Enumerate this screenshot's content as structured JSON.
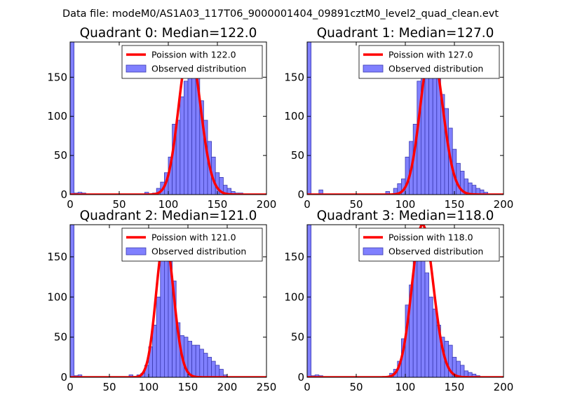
{
  "suptitle": "Data file: modeM0/AS1A03_117T06_9000001404_09891cztM0_level2_quad_clean.evt",
  "colors": {
    "bar_fill": "#8080ff",
    "bar_edge": "#3a3ab0",
    "line": "#ff0000"
  },
  "chart_data": [
    {
      "type": "bar",
      "title": "Quadrant 0: Median=122.0",
      "xlim": [
        0,
        200
      ],
      "ylim": [
        0,
        195
      ],
      "xticks": [
        0,
        50,
        100,
        150,
        200
      ],
      "yticks": [
        0,
        50,
        100,
        150
      ],
      "bin_width": 4,
      "bins": [
        {
          "x": 0,
          "count": 195
        },
        {
          "x": 4,
          "count": 2
        },
        {
          "x": 8,
          "count": 3
        },
        {
          "x": 12,
          "count": 2
        },
        {
          "x": 76,
          "count": 3
        },
        {
          "x": 84,
          "count": 2
        },
        {
          "x": 88,
          "count": 8
        },
        {
          "x": 92,
          "count": 16
        },
        {
          "x": 96,
          "count": 28
        },
        {
          "x": 100,
          "count": 48
        },
        {
          "x": 104,
          "count": 90
        },
        {
          "x": 108,
          "count": 95
        },
        {
          "x": 112,
          "count": 125
        },
        {
          "x": 116,
          "count": 145
        },
        {
          "x": 120,
          "count": 165
        },
        {
          "x": 124,
          "count": 185
        },
        {
          "x": 128,
          "count": 160
        },
        {
          "x": 132,
          "count": 120
        },
        {
          "x": 136,
          "count": 95
        },
        {
          "x": 140,
          "count": 68
        },
        {
          "x": 144,
          "count": 48
        },
        {
          "x": 148,
          "count": 28
        },
        {
          "x": 152,
          "count": 22
        },
        {
          "x": 156,
          "count": 12
        },
        {
          "x": 160,
          "count": 8
        },
        {
          "x": 164,
          "count": 4
        },
        {
          "x": 168,
          "count": 2
        },
        {
          "x": 172,
          "count": 2
        }
      ],
      "poisson": {
        "mean": 122.0,
        "peak": 188,
        "label": "Poission with 122.0"
      },
      "legend": [
        "Poission with 122.0",
        "Observed distribution"
      ]
    },
    {
      "type": "bar",
      "title": "Quadrant 1: Median=127.0",
      "xlim": [
        0,
        200
      ],
      "ylim": [
        0,
        195
      ],
      "xticks": [
        0,
        50,
        100,
        150,
        200
      ],
      "yticks": [
        0,
        50,
        100,
        150
      ],
      "bin_width": 4,
      "bins": [
        {
          "x": 0,
          "count": 195
        },
        {
          "x": 12,
          "count": 6
        },
        {
          "x": 80,
          "count": 4
        },
        {
          "x": 88,
          "count": 8
        },
        {
          "x": 92,
          "count": 14
        },
        {
          "x": 96,
          "count": 20
        },
        {
          "x": 100,
          "count": 48
        },
        {
          "x": 104,
          "count": 68
        },
        {
          "x": 108,
          "count": 90
        },
        {
          "x": 112,
          "count": 145
        },
        {
          "x": 116,
          "count": 170
        },
        {
          "x": 120,
          "count": 168
        },
        {
          "x": 124,
          "count": 185
        },
        {
          "x": 128,
          "count": 180
        },
        {
          "x": 132,
          "count": 155
        },
        {
          "x": 136,
          "count": 128
        },
        {
          "x": 140,
          "count": 110
        },
        {
          "x": 144,
          "count": 85
        },
        {
          "x": 148,
          "count": 58
        },
        {
          "x": 152,
          "count": 40
        },
        {
          "x": 156,
          "count": 30
        },
        {
          "x": 160,
          "count": 20
        },
        {
          "x": 164,
          "count": 15
        },
        {
          "x": 168,
          "count": 12
        },
        {
          "x": 172,
          "count": 8
        },
        {
          "x": 176,
          "count": 6
        },
        {
          "x": 180,
          "count": 3
        }
      ],
      "poisson": {
        "mean": 127.0,
        "peak": 188,
        "label": "Poission with 127.0"
      },
      "legend": [
        "Poission with 127.0",
        "Observed distribution"
      ]
    },
    {
      "type": "bar",
      "title": "Quadrant 2: Median=121.0",
      "xlim": [
        0,
        250
      ],
      "ylim": [
        0,
        190
      ],
      "xticks": [
        0,
        50,
        100,
        150,
        200,
        250
      ],
      "yticks": [
        0,
        50,
        100,
        150
      ],
      "bin_width": 5,
      "bins": [
        {
          "x": 0,
          "count": 190
        },
        {
          "x": 5,
          "count": 2
        },
        {
          "x": 10,
          "count": 3
        },
        {
          "x": 75,
          "count": 3
        },
        {
          "x": 85,
          "count": 3
        },
        {
          "x": 90,
          "count": 5
        },
        {
          "x": 95,
          "count": 15
        },
        {
          "x": 100,
          "count": 38
        },
        {
          "x": 105,
          "count": 65
        },
        {
          "x": 110,
          "count": 100
        },
        {
          "x": 115,
          "count": 155
        },
        {
          "x": 120,
          "count": 175
        },
        {
          "x": 125,
          "count": 160
        },
        {
          "x": 130,
          "count": 120
        },
        {
          "x": 135,
          "count": 68
        },
        {
          "x": 140,
          "count": 52
        },
        {
          "x": 145,
          "count": 50
        },
        {
          "x": 150,
          "count": 45
        },
        {
          "x": 155,
          "count": 40
        },
        {
          "x": 160,
          "count": 40
        },
        {
          "x": 165,
          "count": 35
        },
        {
          "x": 170,
          "count": 30
        },
        {
          "x": 175,
          "count": 25
        },
        {
          "x": 180,
          "count": 20
        },
        {
          "x": 185,
          "count": 15
        },
        {
          "x": 190,
          "count": 10
        },
        {
          "x": 195,
          "count": 3
        }
      ],
      "poisson": {
        "mean": 121.0,
        "peak": 175,
        "label": "Poission with 121.0"
      },
      "legend": [
        "Poission with 121.0",
        "Observed distribution"
      ]
    },
    {
      "type": "bar",
      "title": "Quadrant 3: Median=118.0",
      "xlim": [
        0,
        200
      ],
      "ylim": [
        0,
        190
      ],
      "xticks": [
        0,
        50,
        100,
        150,
        200
      ],
      "yticks": [
        0,
        50,
        100,
        150
      ],
      "bin_width": 4,
      "bins": [
        {
          "x": 0,
          "count": 190
        },
        {
          "x": 4,
          "count": 2
        },
        {
          "x": 8,
          "count": 3
        },
        {
          "x": 12,
          "count": 2
        },
        {
          "x": 84,
          "count": 5
        },
        {
          "x": 88,
          "count": 10
        },
        {
          "x": 92,
          "count": 20
        },
        {
          "x": 96,
          "count": 48
        },
        {
          "x": 100,
          "count": 90
        },
        {
          "x": 104,
          "count": 115
        },
        {
          "x": 108,
          "count": 145
        },
        {
          "x": 112,
          "count": 165
        },
        {
          "x": 116,
          "count": 185
        },
        {
          "x": 120,
          "count": 130
        },
        {
          "x": 124,
          "count": 100
        },
        {
          "x": 128,
          "count": 85
        },
        {
          "x": 132,
          "count": 65
        },
        {
          "x": 136,
          "count": 50
        },
        {
          "x": 140,
          "count": 45
        },
        {
          "x": 144,
          "count": 40
        },
        {
          "x": 148,
          "count": 25
        },
        {
          "x": 152,
          "count": 20
        },
        {
          "x": 156,
          "count": 15
        },
        {
          "x": 160,
          "count": 8
        },
        {
          "x": 164,
          "count": 6
        },
        {
          "x": 168,
          "count": 4
        },
        {
          "x": 172,
          "count": 2
        }
      ],
      "poisson": {
        "mean": 118.0,
        "peak": 190,
        "label": "Poission with 118.0"
      },
      "legend": [
        "Poission with 118.0",
        "Observed distribution"
      ]
    }
  ]
}
